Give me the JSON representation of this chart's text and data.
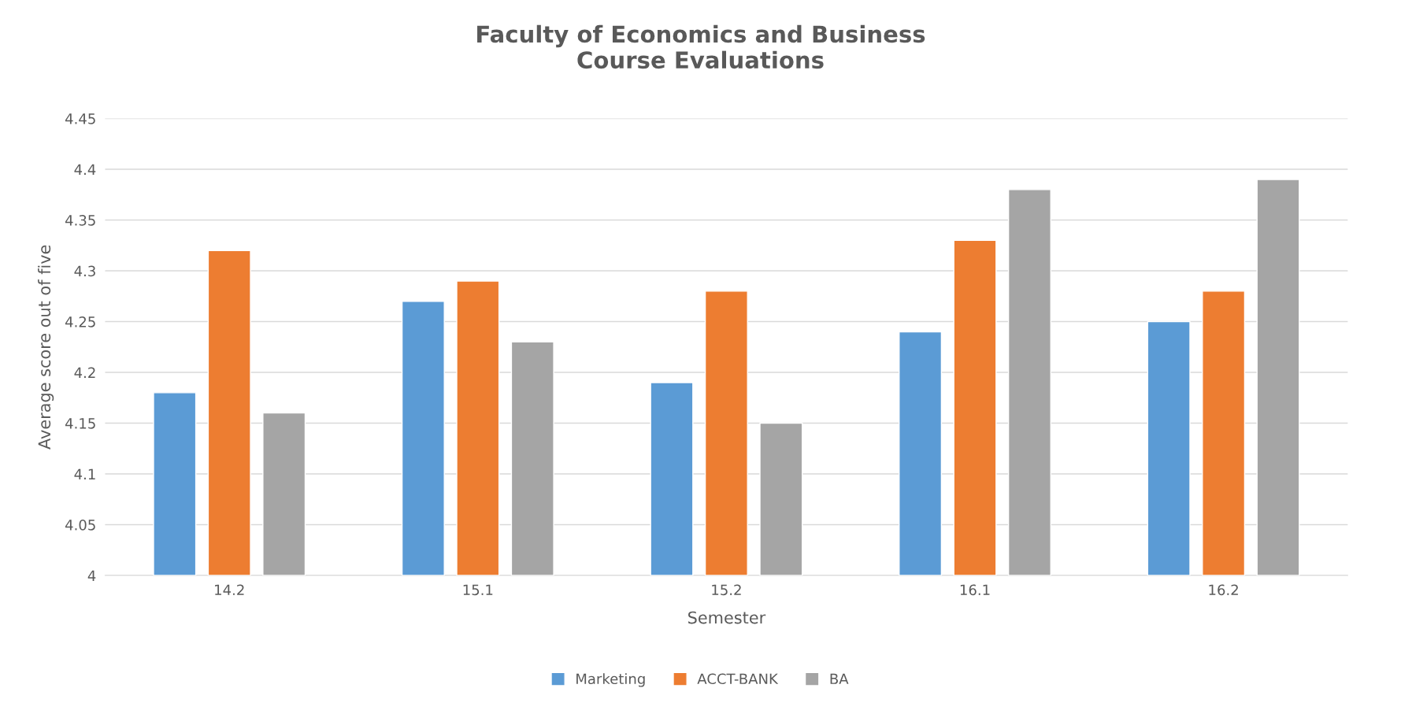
{
  "chart_data": {
    "type": "bar",
    "title": "Faculty of Economics and Business\nCourse Evaluations",
    "xlabel": "Semester",
    "ylabel": "Average score out of five",
    "categories": [
      "14.2",
      "15.1",
      "15.2",
      "16.1",
      "16.2"
    ],
    "series": [
      {
        "name": "Marketing",
        "color": "#5b9bd5",
        "values": [
          4.18,
          4.27,
          4.19,
          4.24,
          4.25
        ]
      },
      {
        "name": "ACCT-BANK",
        "color": "#ed7d31",
        "values": [
          4.32,
          4.29,
          4.28,
          4.33,
          4.28
        ]
      },
      {
        "name": "BA",
        "color": "#a5a5a5",
        "values": [
          4.16,
          4.23,
          4.15,
          4.38,
          4.39
        ]
      }
    ],
    "ylim": [
      4,
      4.45
    ],
    "yticks": [
      4,
      4.05,
      4.1,
      4.15,
      4.2,
      4.25,
      4.3,
      4.35,
      4.4,
      4.45
    ],
    "grid": "y",
    "legend": "bottom"
  }
}
